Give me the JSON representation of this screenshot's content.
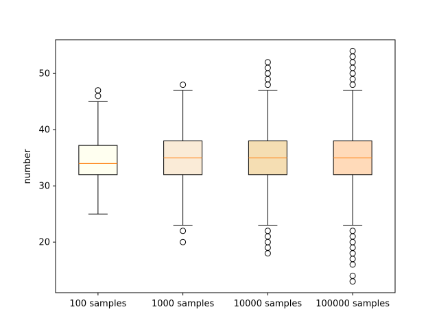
{
  "chart_data": {
    "type": "boxplot",
    "title": "",
    "xlabel": "",
    "ylabel": "number",
    "ylim": [
      11.0,
      56.0
    ],
    "yticks": [
      20,
      30,
      40,
      50
    ],
    "grid": false,
    "categories": [
      "100 samples",
      "1000 samples",
      "10000 samples",
      "100000 samples"
    ],
    "boxes": [
      {
        "label": "100 samples",
        "fill": "#fffff0",
        "whisker_low": 25,
        "q1": 32,
        "median": 34,
        "q3": 37.2,
        "whisker_high": 45,
        "outliers": [
          46,
          47
        ]
      },
      {
        "label": "1000 samples",
        "fill": "#faebd7",
        "whisker_low": 23,
        "q1": 32,
        "median": 35,
        "q3": 38,
        "whisker_high": 47,
        "outliers": [
          20,
          22,
          48
        ]
      },
      {
        "label": "10000 samples",
        "fill": "#f5deb3",
        "whisker_low": 23,
        "q1": 32,
        "median": 35,
        "q3": 38,
        "whisker_high": 47,
        "outliers": [
          18,
          19,
          20,
          21,
          22,
          48,
          49,
          50,
          51,
          52
        ]
      },
      {
        "label": "100000 samples",
        "fill": "#ffdab9",
        "whisker_low": 23,
        "q1": 32,
        "median": 35,
        "q3": 38,
        "whisker_high": 47,
        "outliers": [
          13,
          14,
          16,
          17,
          18,
          19,
          20,
          21,
          22,
          48,
          49,
          50,
          51,
          52,
          53,
          54
        ]
      }
    ],
    "colors": {
      "median": "#ff7f0e",
      "line": "#000000"
    }
  }
}
